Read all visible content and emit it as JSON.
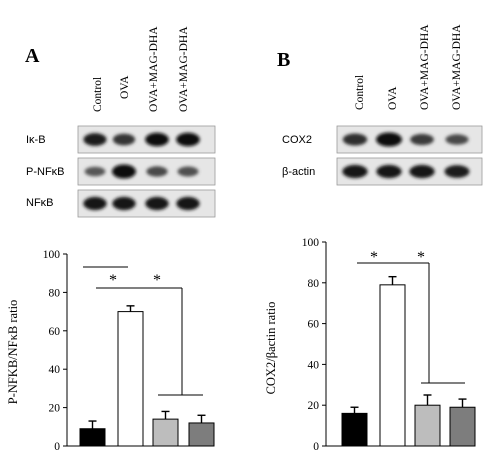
{
  "panels": [
    {
      "letter": "A",
      "lanes": [
        "Control",
        "OVA",
        "OVA+MAG-DHA",
        "OVA+MAG-DHA"
      ],
      "blots": [
        {
          "label": "Iκ-B",
          "intensity": [
            0.85,
            0.7,
            0.95,
            0.95
          ]
        },
        {
          "label": "P-NFκB",
          "intensity": [
            0.45,
            1.0,
            0.55,
            0.5
          ]
        },
        {
          "label": "NFκB",
          "intensity": [
            0.9,
            0.9,
            0.9,
            0.9
          ]
        }
      ],
      "significance": [
        "*",
        "*"
      ]
    },
    {
      "letter": "B",
      "lanes": [
        "Control",
        "OVA",
        "OVA+MAG-DHA",
        "OVA+MAG-DHA"
      ],
      "blots": [
        {
          "label": "COX2",
          "intensity": [
            0.75,
            1.0,
            0.65,
            0.55
          ]
        },
        {
          "label": "β-actin",
          "intensity": [
            0.9,
            0.9,
            0.9,
            0.85
          ]
        }
      ],
      "significance": [
        "*",
        "*"
      ]
    }
  ],
  "bar_colors": [
    "#000000",
    "#ffffff",
    "#bdbdbd",
    "#7d7d7d"
  ],
  "chart_data": [
    {
      "type": "bar",
      "categories": [
        "Control",
        "OVA",
        "OVA+MAG-DHA",
        "OVA+MAG-DHA"
      ],
      "values": [
        9,
        70,
        14,
        12
      ],
      "errors": [
        4,
        3,
        4,
        4
      ],
      "title": "",
      "xlabel": "",
      "ylabel": "P-NFKB/NFκB ratio",
      "ylim": [
        0,
        100
      ],
      "yticks": [
        0,
        20,
        40,
        60,
        80,
        100
      ]
    },
    {
      "type": "bar",
      "categories": [
        "Control",
        "OVA",
        "OVA+MAG-DHA",
        "OVA+MAG-DHA"
      ],
      "values": [
        16,
        79,
        20,
        19
      ],
      "errors": [
        3,
        4,
        5,
        4
      ],
      "title": "",
      "xlabel": "",
      "ylabel": "COX2/βactin ratio",
      "ylim": [
        0,
        100
      ],
      "yticks": [
        0,
        20,
        40,
        60,
        80,
        100
      ]
    }
  ]
}
